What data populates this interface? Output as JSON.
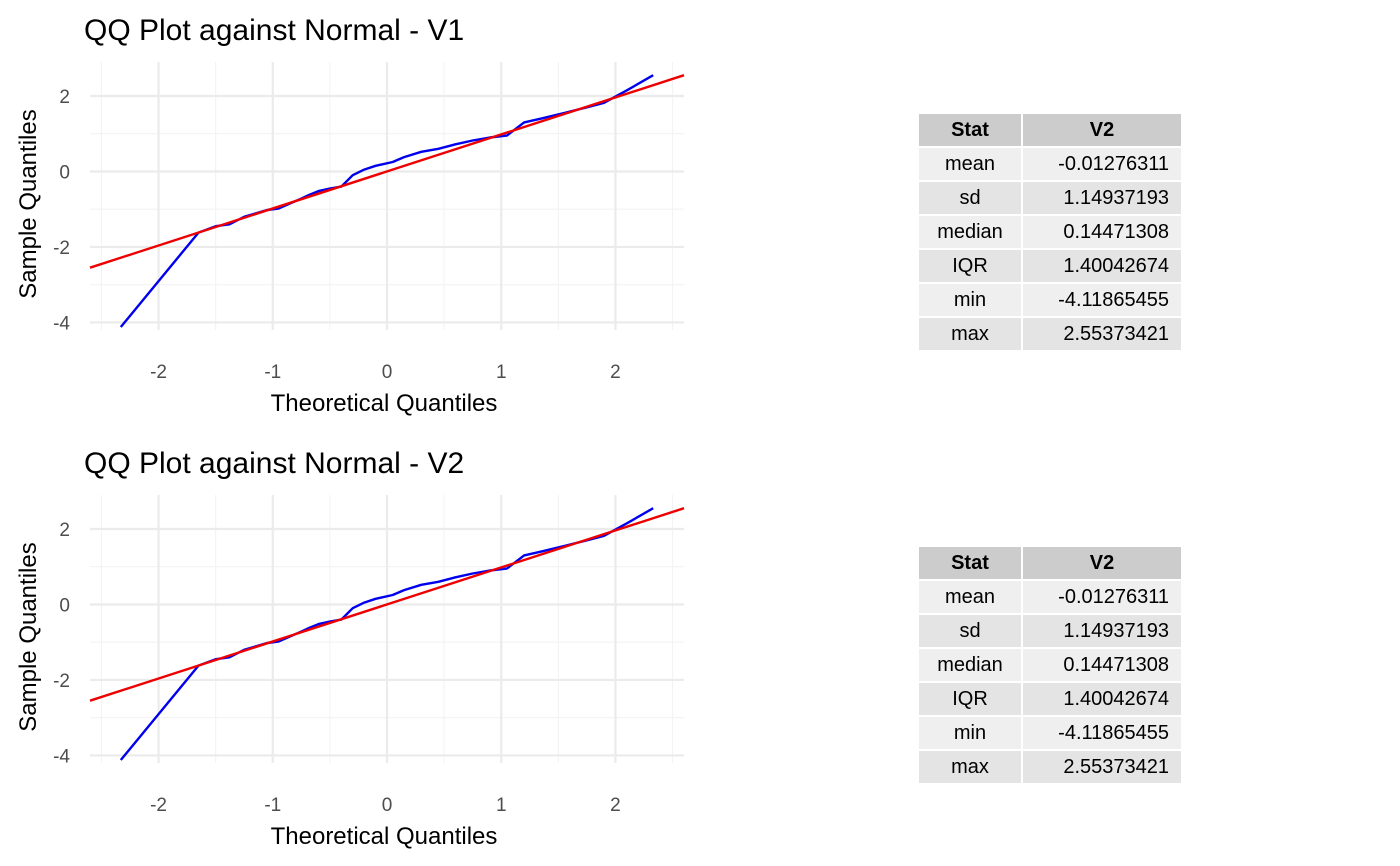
{
  "colors": {
    "sample_line": "#0000ee",
    "reference_line": "#ee0000",
    "header_bg": "#cccccc"
  },
  "chart_data": [
    {
      "type": "line",
      "title": "QQ Plot against Normal -  V1",
      "xlabel": "Theoretical Quantiles",
      "ylabel": "Sample Quantiles",
      "xlim": [
        -2.6,
        2.6
      ],
      "ylim": [
        -4.2,
        2.9
      ],
      "x_ticks": [
        -2,
        -1,
        0,
        1,
        2
      ],
      "y_ticks": [
        -4,
        -2,
        0,
        2
      ],
      "grid": true,
      "series": [
        {
          "color": "#0000ee",
          "x": [
            -2.33,
            -1.65,
            -1.5,
            -1.38,
            -1.25,
            -1.05,
            -0.95,
            -0.85,
            -0.75,
            -0.68,
            -0.6,
            -0.5,
            -0.4,
            -0.3,
            -0.2,
            -0.1,
            0.05,
            0.15,
            0.3,
            0.45,
            0.6,
            0.75,
            0.9,
            1.05,
            1.2,
            1.35,
            1.55,
            1.75,
            1.9,
            2.1,
            2.33
          ],
          "y": [
            -4.12,
            -1.62,
            -1.45,
            -1.4,
            -1.2,
            -1.02,
            -0.98,
            -0.85,
            -0.72,
            -0.62,
            -0.52,
            -0.45,
            -0.4,
            -0.1,
            0.05,
            0.15,
            0.25,
            0.38,
            0.52,
            0.6,
            0.72,
            0.82,
            0.9,
            0.95,
            1.3,
            1.4,
            1.55,
            1.7,
            1.82,
            2.15,
            2.55
          ]
        },
        {
          "color": "#ee0000",
          "x": [
            -2.6,
            2.6
          ],
          "y": [
            -2.55,
            2.55
          ]
        }
      ]
    },
    {
      "type": "line",
      "title": "QQ Plot against Normal -  V2",
      "xlabel": "Theoretical Quantiles",
      "ylabel": "Sample Quantiles",
      "xlim": [
        -2.6,
        2.6
      ],
      "ylim": [
        -4.2,
        2.9
      ],
      "x_ticks": [
        -2,
        -1,
        0,
        1,
        2
      ],
      "y_ticks": [
        -4,
        -2,
        0,
        2
      ],
      "grid": true,
      "series": [
        {
          "color": "#0000ee",
          "x": [
            -2.33,
            -1.65,
            -1.5,
            -1.38,
            -1.25,
            -1.05,
            -0.95,
            -0.85,
            -0.75,
            -0.68,
            -0.6,
            -0.5,
            -0.4,
            -0.3,
            -0.2,
            -0.1,
            0.05,
            0.15,
            0.3,
            0.45,
            0.6,
            0.75,
            0.9,
            1.05,
            1.2,
            1.35,
            1.55,
            1.75,
            1.9,
            2.1,
            2.33
          ],
          "y": [
            -4.12,
            -1.62,
            -1.45,
            -1.4,
            -1.2,
            -1.02,
            -0.98,
            -0.85,
            -0.72,
            -0.62,
            -0.52,
            -0.45,
            -0.4,
            -0.1,
            0.05,
            0.15,
            0.25,
            0.38,
            0.52,
            0.6,
            0.72,
            0.82,
            0.9,
            0.95,
            1.3,
            1.4,
            1.55,
            1.7,
            1.82,
            2.15,
            2.55
          ]
        },
        {
          "color": "#ee0000",
          "x": [
            -2.6,
            2.6
          ],
          "y": [
            -2.55,
            2.55
          ]
        }
      ]
    },
    {
      "type": "table",
      "columns": [
        "Stat",
        "V2"
      ],
      "rows": [
        [
          "mean",
          "-0.01276311"
        ],
        [
          "sd",
          "1.14937193"
        ],
        [
          "median",
          "0.14471308"
        ],
        [
          "IQR",
          "1.40042674"
        ],
        [
          "min",
          "-4.11865455"
        ],
        [
          "max",
          "2.55373421"
        ]
      ]
    },
    {
      "type": "table",
      "columns": [
        "Stat",
        "V2"
      ],
      "rows": [
        [
          "mean",
          "-0.01276311"
        ],
        [
          "sd",
          "1.14937193"
        ],
        [
          "median",
          "0.14471308"
        ],
        [
          "IQR",
          "1.40042674"
        ],
        [
          "min",
          "-4.11865455"
        ],
        [
          "max",
          "2.55373421"
        ]
      ]
    }
  ]
}
